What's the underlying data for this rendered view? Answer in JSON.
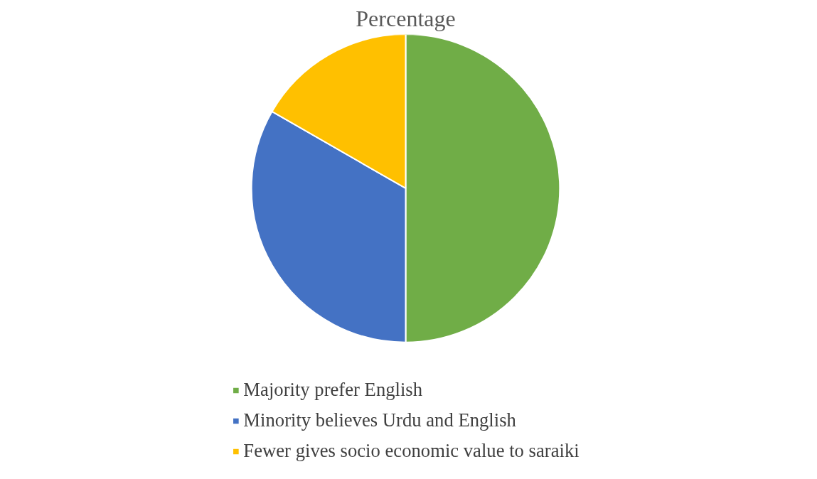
{
  "chart_data": {
    "type": "pie",
    "title": "Percentage",
    "categories": [
      "Majority prefer English",
      "Minority believes Urdu and English",
      "Fewer gives socio economic value to saraiki"
    ],
    "values": [
      50,
      33.3,
      16.7
    ],
    "colors": [
      "#70ad47",
      "#4472c4",
      "#ffc000"
    ],
    "legend": "bottom"
  }
}
